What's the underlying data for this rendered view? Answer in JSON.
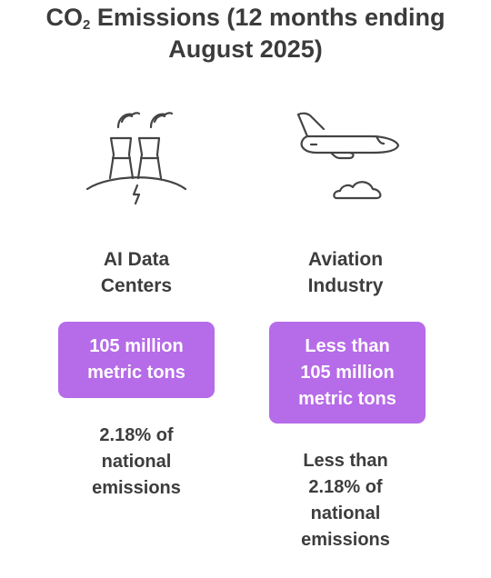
{
  "title": {
    "prefix": "CO",
    "subscript": "2",
    "line1_rest": " Emissions (12 months ending",
    "line2": "August 2025)"
  },
  "columns": [
    {
      "icon": "power-plant-icon",
      "label_lines": [
        "AI Data",
        "Centers"
      ],
      "value_lines": [
        "105 million",
        "metric tons"
      ],
      "share_lines": [
        "2.18% of",
        "national",
        "emissions"
      ]
    },
    {
      "icon": "airplane-icon",
      "label_lines": [
        "Aviation",
        "Industry"
      ],
      "value_lines": [
        "Less than",
        "105 million",
        "metric tons"
      ],
      "share_lines": [
        "Less than",
        "2.18% of",
        "national",
        "emissions"
      ]
    }
  ],
  "colors": {
    "badge": "#b66be8",
    "text": "#3d3d3d",
    "icon_stroke": "#444444"
  }
}
